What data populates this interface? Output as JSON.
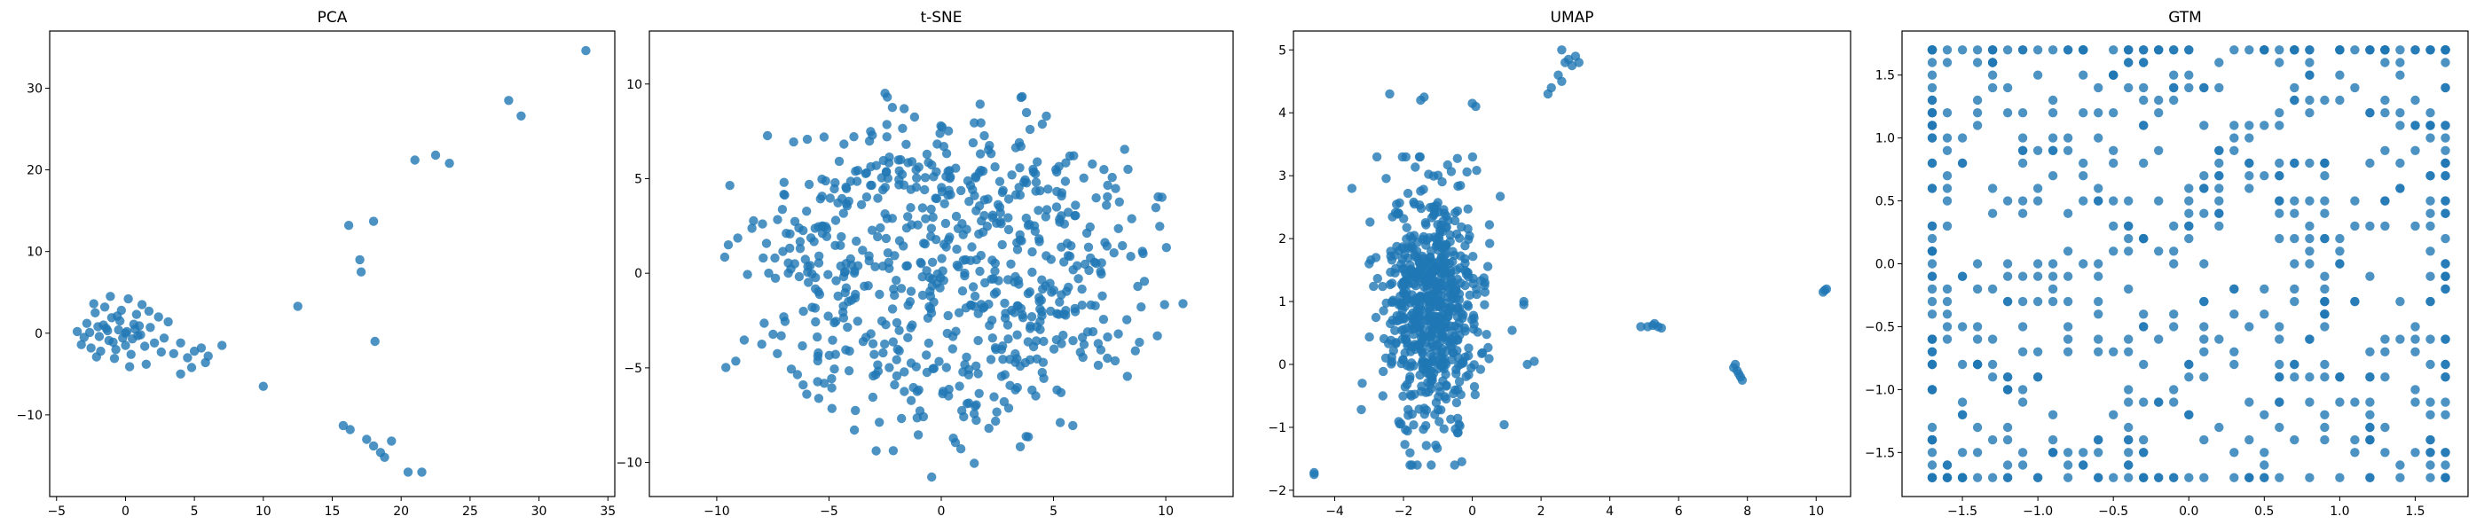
{
  "chart_data": [
    {
      "type": "scatter",
      "title": "PCA",
      "xlabel": "",
      "ylabel": "",
      "xlim": [
        -5.5,
        35.5
      ],
      "ylim": [
        -20,
        37
      ],
      "xticks": [
        -5,
        0,
        5,
        10,
        15,
        20,
        25,
        30,
        35
      ],
      "yticks": [
        -10,
        0,
        10,
        20,
        30
      ],
      "color": "#1f77b4",
      "grid": false,
      "points": [
        [
          -3.5,
          0.2
        ],
        [
          -3.0,
          -0.5
        ],
        [
          -2.8,
          1.2
        ],
        [
          -2.5,
          -1.8
        ],
        [
          -2.2,
          2.5
        ],
        [
          -2.0,
          0.8
        ],
        [
          -1.8,
          -2.2
        ],
        [
          -1.5,
          3.2
        ],
        [
          -1.2,
          -0.9
        ],
        [
          -1.0,
          1.9
        ],
        [
          -0.8,
          -3.1
        ],
        [
          -0.5,
          0.4
        ],
        [
          -0.3,
          2.8
        ],
        [
          0.0,
          -1.5
        ],
        [
          0.2,
          4.2
        ],
        [
          0.4,
          -2.6
        ],
        [
          0.6,
          1.1
        ],
        [
          0.9,
          -0.3
        ],
        [
          1.2,
          3.5
        ],
        [
          1.5,
          -3.8
        ],
        [
          1.8,
          0.7
        ],
        [
          2.1,
          -1.2
        ],
        [
          2.4,
          2.0
        ],
        [
          2.8,
          -0.6
        ],
        [
          3.1,
          1.4
        ],
        [
          -2.6,
          0.1
        ],
        [
          -1.9,
          -0.4
        ],
        [
          -1.4,
          0.6
        ],
        [
          -0.9,
          -1.1
        ],
        [
          -0.4,
          1.5
        ],
        [
          0.1,
          0.2
        ],
        [
          0.5,
          -0.7
        ],
        [
          1.0,
          0.9
        ],
        [
          1.4,
          -1.6
        ],
        [
          -3.2,
          -1.4
        ],
        [
          -2.3,
          3.6
        ],
        [
          -1.1,
          4.5
        ],
        [
          0.3,
          -4.1
        ],
        [
          1.7,
          2.7
        ],
        [
          2.6,
          -2.3
        ],
        [
          -1.6,
          1.0
        ],
        [
          -0.7,
          -2.0
        ],
        [
          0.8,
          2.3
        ],
        [
          -2.1,
          -2.9
        ],
        [
          0.0,
          0.0
        ],
        [
          -1.3,
          0.3
        ],
        [
          0.7,
          0.5
        ],
        [
          -0.2,
          -0.6
        ],
        [
          1.1,
          -0.2
        ],
        [
          -0.6,
          2.1
        ],
        [
          3.5,
          -2.5
        ],
        [
          4.0,
          -1.2
        ],
        [
          4.5,
          -3.0
        ],
        [
          5.0,
          -2.2
        ],
        [
          5.5,
          -1.8
        ],
        [
          6.0,
          -2.8
        ],
        [
          7.0,
          -1.5
        ],
        [
          4.8,
          -4.2
        ],
        [
          4.0,
          -5.0
        ],
        [
          5.8,
          -3.6
        ],
        [
          10.0,
          -6.5
        ],
        [
          12.5,
          3.3
        ],
        [
          16.2,
          13.2
        ],
        [
          17.0,
          9.0
        ],
        [
          17.1,
          7.5
        ],
        [
          18.0,
          13.7
        ],
        [
          18.1,
          -1.0
        ],
        [
          15.8,
          -11.3
        ],
        [
          16.3,
          -11.8
        ],
        [
          17.5,
          -13.0
        ],
        [
          18.0,
          -13.8
        ],
        [
          18.5,
          -14.6
        ],
        [
          18.8,
          -15.2
        ],
        [
          19.3,
          -13.2
        ],
        [
          20.5,
          -17.0
        ],
        [
          21.5,
          -17.0
        ],
        [
          21.0,
          21.2
        ],
        [
          22.5,
          21.8
        ],
        [
          23.5,
          20.8
        ],
        [
          27.8,
          28.5
        ],
        [
          28.7,
          26.6
        ],
        [
          33.4,
          34.6
        ]
      ]
    },
    {
      "type": "scatter",
      "title": "t-SNE",
      "xlabel": "",
      "ylabel": "",
      "xlim": [
        -13,
        13
      ],
      "ylim": [
        -11.8,
        12.8
      ],
      "xticks": [
        -10,
        -5,
        0,
        5,
        10
      ],
      "yticks": [
        -10,
        -5,
        0,
        5,
        10
      ],
      "color": "#1f77b4",
      "grid": false,
      "points": "generated-cloud"
    },
    {
      "type": "scatter",
      "title": "UMAP",
      "xlabel": "",
      "ylabel": "",
      "xlim": [
        -5.2,
        11.0
      ],
      "ylim": [
        -2.1,
        5.3
      ],
      "xticks": [
        -4,
        -2,
        0,
        2,
        4,
        6,
        8,
        10
      ],
      "yticks": [
        -2,
        -1,
        0,
        1,
        2,
        3,
        4,
        5
      ],
      "color": "#1f77b4",
      "grid": false,
      "points": [
        [
          -4.6,
          -1.75
        ],
        [
          -4.6,
          -1.72
        ],
        [
          -3.5,
          2.8
        ],
        [
          -3.0,
          1.6
        ],
        [
          -2.8,
          1.7
        ],
        [
          -2.6,
          -0.5
        ],
        [
          -3.2,
          -0.3
        ],
        [
          -2.4,
          4.3
        ],
        [
          -1.4,
          4.25
        ],
        [
          -1.5,
          4.2
        ],
        [
          0.1,
          4.1
        ],
        [
          0.0,
          4.15
        ],
        [
          1.5,
          1.0
        ],
        [
          1.5,
          0.95
        ],
        [
          1.6,
          0.0
        ],
        [
          1.8,
          0.05
        ],
        [
          2.2,
          4.3
        ],
        [
          2.3,
          4.4
        ],
        [
          2.5,
          4.6
        ],
        [
          2.6,
          5.0
        ],
        [
          2.7,
          4.8
        ],
        [
          2.8,
          4.85
        ],
        [
          2.9,
          4.75
        ],
        [
          3.0,
          4.9
        ],
        [
          3.1,
          4.8
        ],
        [
          2.6,
          4.5
        ],
        [
          4.9,
          0.6
        ],
        [
          5.1,
          0.6
        ],
        [
          5.3,
          0.65
        ],
        [
          5.4,
          0.6
        ],
        [
          5.5,
          0.58
        ],
        [
          5.25,
          0.62
        ],
        [
          7.6,
          -0.05
        ],
        [
          7.7,
          -0.1
        ],
        [
          7.75,
          -0.15
        ],
        [
          7.8,
          -0.2
        ],
        [
          7.85,
          -0.25
        ],
        [
          7.65,
          0.0
        ],
        [
          10.2,
          1.15
        ],
        [
          10.3,
          1.2
        ],
        [
          10.25,
          1.18
        ]
      ],
      "main_cluster": {
        "center": [
          -1.2,
          0.9
        ],
        "spread": [
          0.9,
          0.95
        ]
      }
    },
    {
      "type": "scatter",
      "title": "GTM",
      "xlabel": "",
      "ylabel": "",
      "xlim": [
        -1.9,
        1.85
      ],
      "ylim": [
        -1.85,
        1.85
      ],
      "xticks": [
        -1.5,
        -1.0,
        -0.5,
        0.0,
        0.5,
        1.0,
        1.5
      ],
      "yticks": [
        -1.5,
        -1.0,
        -0.5,
        0.0,
        0.5,
        1.0,
        1.5
      ],
      "color": "#1f77b4",
      "grid": false,
      "points": "generated-grid"
    }
  ]
}
